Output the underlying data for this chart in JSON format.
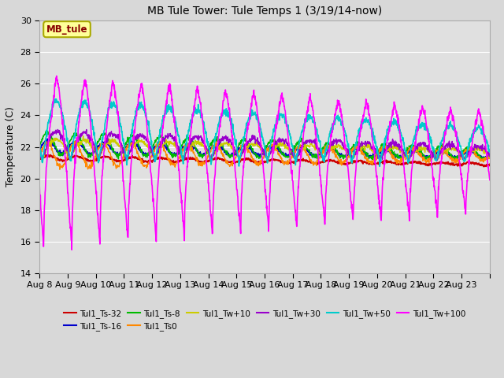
{
  "title": "MB Tule Tower: Tule Temps 1 (3/19/14-now)",
  "ylabel": "Temperature (C)",
  "ylim": [
    14,
    30
  ],
  "yticks": [
    14,
    16,
    18,
    20,
    22,
    24,
    26,
    28,
    30
  ],
  "xlabel_dates": [
    "Aug 8",
    "Aug 9",
    "Aug 10",
    "Aug 11",
    "Aug 12",
    "Aug 13",
    "Aug 14",
    "Aug 15",
    "Aug 16",
    "Aug 17",
    "Aug 18",
    "Aug 19",
    "Aug 20",
    "Aug 21",
    "Aug 22",
    "Aug 23"
  ],
  "n_days": 16,
  "series_labels": [
    "Tul1_Ts-32",
    "Tul1_Ts-16",
    "Tul1_Ts-8",
    "Tul1_Ts0",
    "Tul1_Tw+10",
    "Tul1_Tw+30",
    "Tul1_Tw+50",
    "Tul1_Tw+100"
  ],
  "series_colors": [
    "#cc0000",
    "#0000cc",
    "#00bb00",
    "#ff8800",
    "#cccc00",
    "#9900cc",
    "#00cccc",
    "#ff00ff"
  ],
  "bg_color": "#d8d8d8",
  "plot_bg": "#e0e0e0",
  "grid_color": "#ffffff",
  "annotation_label": "MB_tule",
  "annotation_color": "#880000",
  "annotation_bg": "#ffff99",
  "annotation_border": "#aaaa00",
  "figsize": [
    6.4,
    4.8
  ],
  "dpi": 100
}
